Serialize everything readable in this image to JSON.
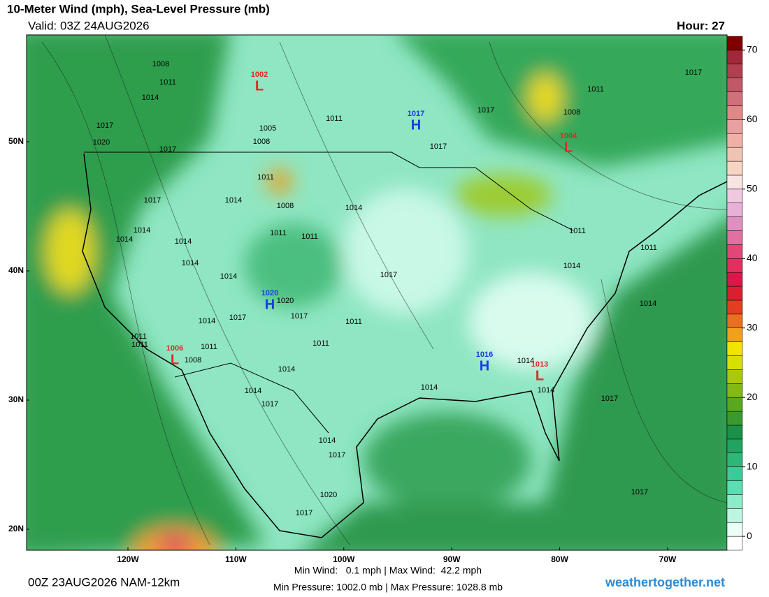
{
  "header": {
    "title": "10-Meter Wind (mph), Sea-Level Pressure (mb)",
    "valid": "Valid: 03Z 24AUG2026",
    "hour": "Hour: 27"
  },
  "map": {
    "lat_ticks": [
      {
        "value": 50,
        "label": "50N"
      },
      {
        "value": 40,
        "label": "40N"
      },
      {
        "value": 30,
        "label": "30N"
      },
      {
        "value": 20,
        "label": "20N"
      }
    ],
    "lon_ticks": [
      {
        "value": -120,
        "label": "120W"
      },
      {
        "value": -110,
        "label": "110W"
      },
      {
        "value": -100,
        "label": "100W"
      },
      {
        "value": -90,
        "label": "90W"
      },
      {
        "value": -80,
        "label": "80W"
      },
      {
        "value": -70,
        "label": "70W"
      }
    ],
    "centers": [
      {
        "type": "L",
        "value": "1002",
        "color": "#e02828"
      },
      {
        "type": "H",
        "value": "1017",
        "color": "#1a3be0"
      },
      {
        "type": "L",
        "value": "1004",
        "color": "#e02828"
      },
      {
        "type": "H",
        "value": "1020",
        "color": "#1a3be0"
      },
      {
        "type": "L",
        "value": "1006",
        "color": "#e02828"
      },
      {
        "type": "H",
        "value": "1016",
        "color": "#1a3be0"
      },
      {
        "type": "L",
        "value": "1013",
        "color": "#e02828"
      }
    ],
    "isobar_labels": [
      "1008",
      "1011",
      "1014",
      "1017",
      "1020",
      "1017",
      "1005",
      "1008",
      "1011",
      "1008",
      "1014",
      "1017",
      "1014",
      "1014",
      "1014",
      "1011",
      "1011",
      "1014",
      "1014",
      "1020",
      "1017",
      "1017",
      "1014",
      "1011",
      "1011",
      "1011",
      "1011",
      "1011",
      "1008",
      "1014",
      "1014",
      "1017",
      "1014",
      "1017",
      "1020",
      "1017",
      "1014",
      "1017",
      "1011",
      "1017",
      "1017",
      "1011",
      "1008",
      "1017",
      "1014",
      "1014",
      "1014",
      "1014",
      "1014",
      "1017",
      "1017",
      "1011",
      "1011"
    ]
  },
  "colorbar": {
    "bins": [
      -2,
      0,
      2,
      4,
      6,
      8,
      10,
      12,
      14,
      16,
      18,
      20,
      22,
      24,
      26,
      28,
      30,
      32,
      34,
      36,
      38,
      40,
      42,
      44,
      46,
      48,
      50,
      52,
      54,
      56,
      58,
      60,
      62,
      64,
      66,
      68,
      70,
      72
    ],
    "colors": [
      "#ffffff",
      "#eafff6",
      "#bdf5e0",
      "#8cecca",
      "#5cddb2",
      "#3ccb98",
      "#2eb878",
      "#22a460",
      "#1a9048",
      "#3a9a30",
      "#5aa820",
      "#82b818",
      "#aac810",
      "#d8e000",
      "#f0e400",
      "#f0a020",
      "#e87020",
      "#e04020",
      "#d82030",
      "#d81848",
      "#e03060",
      "#e04878",
      "#e070a0",
      "#e090c0",
      "#e8b0d8",
      "#f0c8e0",
      "#f8e4e0",
      "#f8d4c4",
      "#f0c4b4",
      "#f0b0a8",
      "#e8a0a0",
      "#e08888",
      "#d07078",
      "#c05868",
      "#b04050",
      "#a02838",
      "#800000"
    ],
    "ticks": [
      0,
      10,
      20,
      30,
      40,
      50,
      60,
      70
    ]
  },
  "footer": {
    "run": "00Z 23AUG2026 NAM-12km",
    "wind": "Min Wind:   0.1 mph | Max Wind:  42.2 mph",
    "pressure": "Min Pressure: 1002.0 mb | Max Pressure: 1028.8 mb",
    "site": "weathertogether.net"
  }
}
